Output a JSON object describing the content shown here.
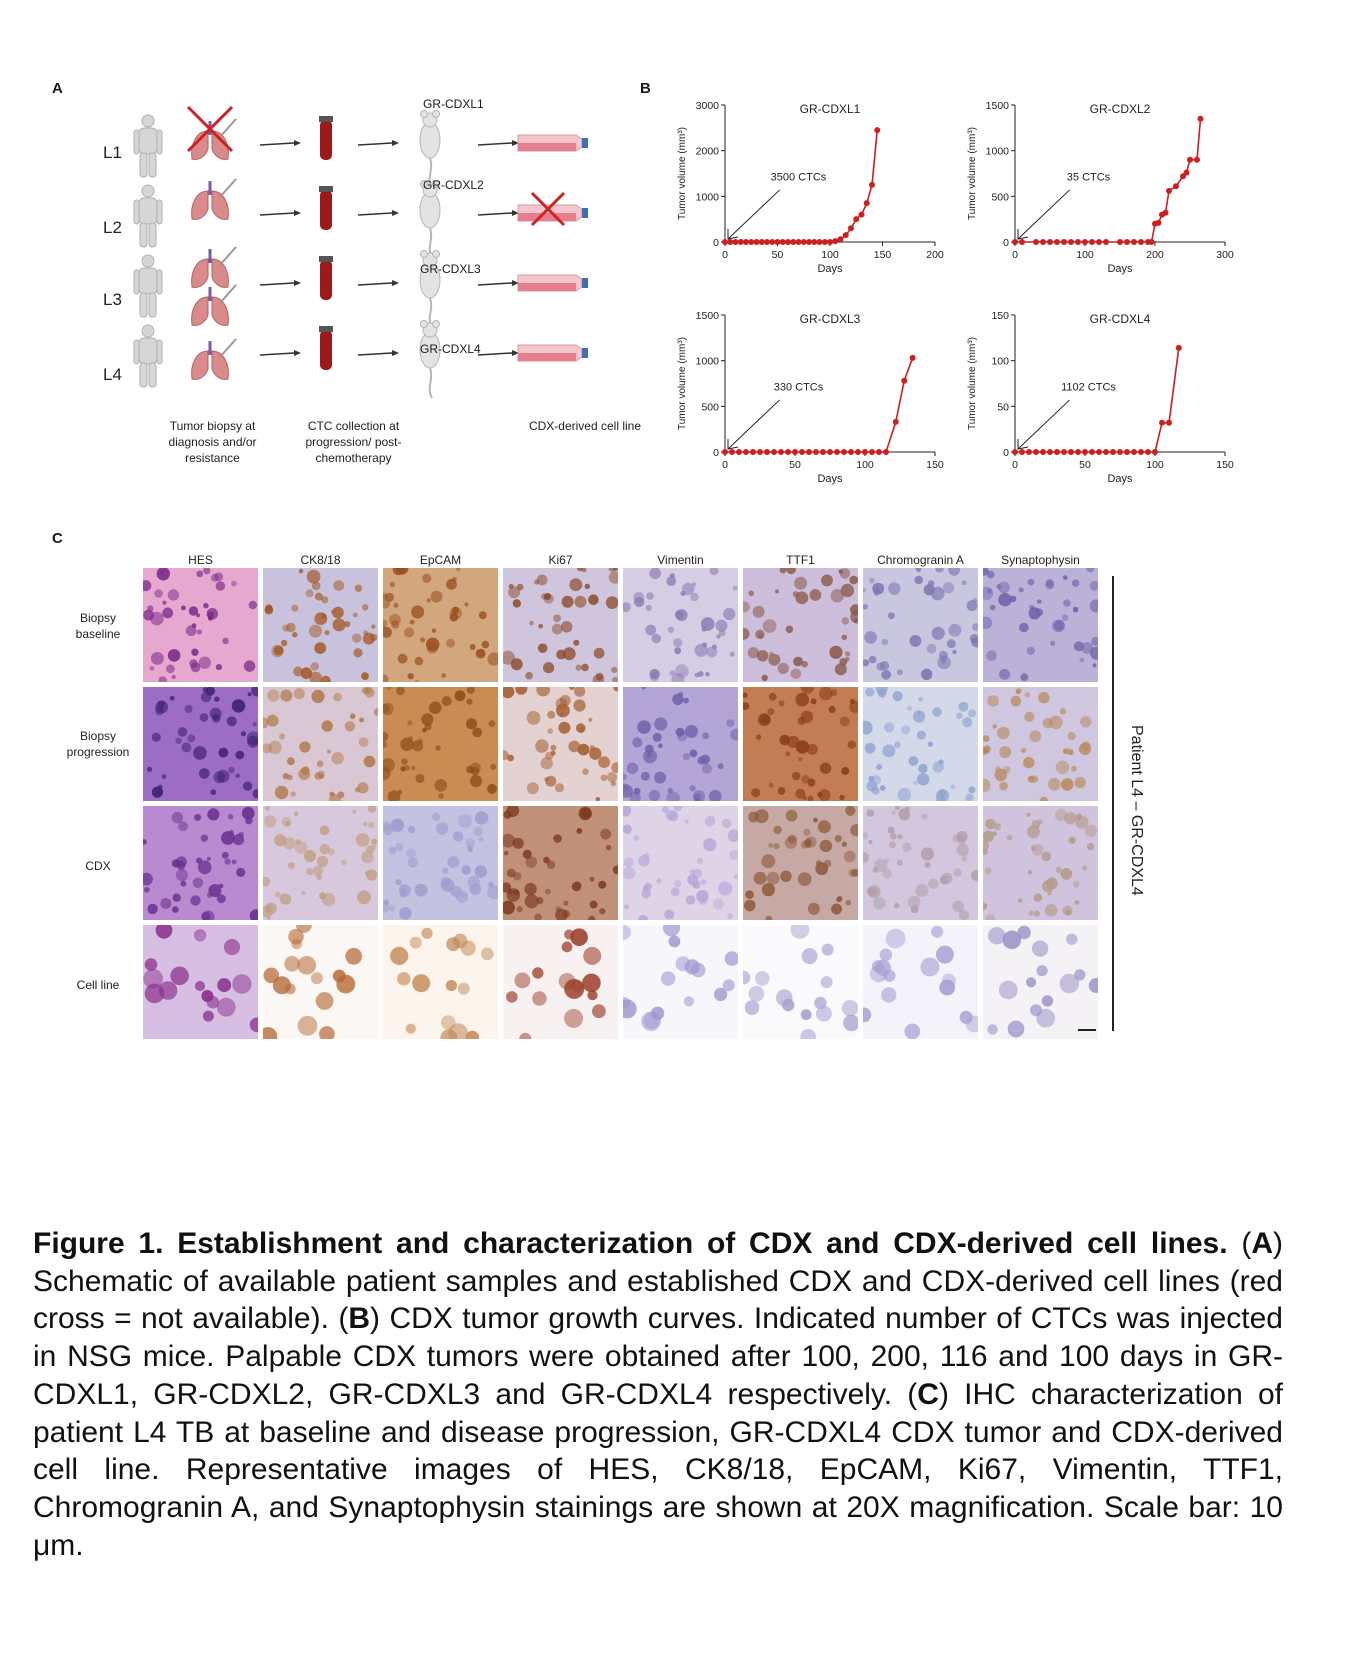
{
  "panelA": {
    "letter": "A",
    "patients": [
      "L1",
      "L2",
      "L3",
      "L4"
    ],
    "cdx_labels": [
      "GR-CDXL1",
      "GR-CDXL2",
      "GR-CDXL3",
      "GR-CDXL4"
    ],
    "captions": {
      "biopsy": "Tumor biopsy at diagnosis and/or resistance",
      "ctc": "CTC collection at progression/ post-chemotherapy",
      "cellline": "CDX-derived cell line"
    },
    "colors": {
      "red": "#cc2222",
      "blood": "#9b1a1a",
      "lung": "#d98b8b",
      "figure": "#d0d0d0"
    }
  },
  "panelB": {
    "letter": "B"
  },
  "chart_data": [
    {
      "type": "line",
      "title": "GR-CDXL1",
      "xlabel": "Days",
      "ylabel": "Tumor volume (mm³)",
      "xlim": [
        0,
        200
      ],
      "ylim": [
        0,
        3000
      ],
      "xticks": [
        0,
        50,
        100,
        150,
        200
      ],
      "yticks": [
        0,
        1000,
        2000,
        3000
      ],
      "annotation": "3500 CTCs",
      "x": [
        0,
        5,
        10,
        15,
        20,
        25,
        30,
        35,
        40,
        45,
        50,
        55,
        60,
        65,
        70,
        75,
        80,
        85,
        90,
        95,
        100,
        105,
        110,
        115,
        120,
        125,
        130,
        135,
        140,
        145,
        150
      ],
      "y": [
        0,
        0,
        0,
        0,
        0,
        0,
        0,
        0,
        0,
        0,
        0,
        0,
        0,
        0,
        0,
        0,
        0,
        0,
        0,
        0,
        0,
        20,
        60,
        150,
        300,
        500,
        600,
        850,
        1250,
        2450,
        null
      ]
    },
    {
      "type": "line",
      "title": "GR-CDXL2",
      "xlabel": "Days",
      "ylabel": "Tumor volume (mm³)",
      "xlim": [
        0,
        300
      ],
      "ylim": [
        0,
        1500
      ],
      "xticks": [
        0,
        100,
        200,
        300
      ],
      "yticks": [
        0,
        500,
        1000,
        1500
      ],
      "annotation": "35 CTCs",
      "x": [
        0,
        10,
        30,
        40,
        50,
        60,
        70,
        80,
        90,
        100,
        110,
        120,
        130,
        150,
        160,
        170,
        180,
        190,
        195,
        200,
        205,
        210,
        215,
        220,
        230,
        240,
        245,
        250,
        260,
        265,
        275
      ],
      "y": [
        0,
        0,
        0,
        0,
        0,
        0,
        0,
        0,
        0,
        0,
        0,
        0,
        0,
        0,
        0,
        0,
        0,
        0,
        0,
        200,
        210,
        300,
        320,
        560,
        610,
        720,
        760,
        900,
        900,
        1350,
        null
      ]
    },
    {
      "type": "line",
      "title": "GR-CDXL3",
      "xlabel": "Days",
      "ylabel": "Tumor volume (mm³)",
      "xlim": [
        0,
        150
      ],
      "ylim": [
        0,
        1500
      ],
      "xticks": [
        0,
        50,
        100,
        150
      ],
      "yticks": [
        0,
        500,
        1000,
        1500
      ],
      "annotation": "330 CTCs",
      "x": [
        0,
        5,
        10,
        15,
        20,
        25,
        30,
        35,
        40,
        45,
        50,
        55,
        60,
        65,
        70,
        75,
        80,
        85,
        90,
        95,
        100,
        105,
        110,
        115,
        122,
        128,
        134
      ],
      "y": [
        0,
        0,
        0,
        0,
        0,
        0,
        0,
        0,
        0,
        0,
        0,
        0,
        0,
        0,
        0,
        0,
        0,
        0,
        0,
        0,
        0,
        0,
        0,
        0,
        330,
        780,
        1030
      ]
    },
    {
      "type": "line",
      "title": "GR-CDXL4",
      "xlabel": "Days",
      "ylabel": "Tumor volume (mm³)",
      "xlim": [
        0,
        150
      ],
      "ylim": [
        0,
        150
      ],
      "xticks": [
        0,
        50,
        100,
        150
      ],
      "yticks": [
        0,
        50,
        100,
        150
      ],
      "annotation": "1102 CTCs",
      "x": [
        0,
        5,
        10,
        15,
        20,
        25,
        30,
        35,
        40,
        45,
        50,
        55,
        60,
        65,
        70,
        75,
        80,
        85,
        90,
        95,
        100,
        105,
        110,
        117
      ],
      "y": [
        0,
        0,
        0,
        0,
        0,
        0,
        0,
        0,
        0,
        0,
        0,
        0,
        0,
        0,
        0,
        0,
        0,
        0,
        0,
        0,
        0,
        32,
        32,
        114
      ]
    }
  ],
  "panelC": {
    "letter": "C",
    "columns": [
      "HES",
      "CK8/18",
      "EpCAM",
      "Ki67",
      "Vimentin",
      "TTF1",
      "Chromogranin A",
      "Synaptophysin"
    ],
    "rows": [
      {
        "line1": "Biopsy",
        "line2": "baseline"
      },
      {
        "line1": "Biopsy",
        "line2": "progression"
      },
      {
        "line1": "CDX",
        "line2": ""
      },
      {
        "line1": "Cell line",
        "line2": ""
      }
    ],
    "side_label": "Patient L4 – GR-CDXL4"
  },
  "caption": {
    "title": "Figure 1. Establishment and characterization of CDX and CDX-derived cell lines.",
    "a_letter": "A",
    "a_text": "Schematic of available patient samples and established CDX and CDX-derived cell lines (red cross = not available).",
    "b_letter": "B",
    "b_text": "CDX tumor growth curves. Indicated number of CTCs was injected in NSG mice. Palpable CDX tumors were obtained after 100, 200, 116 and 100 days in GR-CDXL1, GR-CDXL2, GR-CDXL3 and GR-CDXL4 respectively.",
    "c_letter": "C",
    "c_text": "IHC characterization of patient L4 TB at baseline and disease progression, GR-CDXL4 CDX tumor and CDX-derived cell line. Representative images of HES, CK8/18, EpCAM, Ki67, Vimentin, TTF1, Chromogranin A, and Synaptophysin stainings are shown at 20X magnification. Scale bar: 10 μm."
  }
}
